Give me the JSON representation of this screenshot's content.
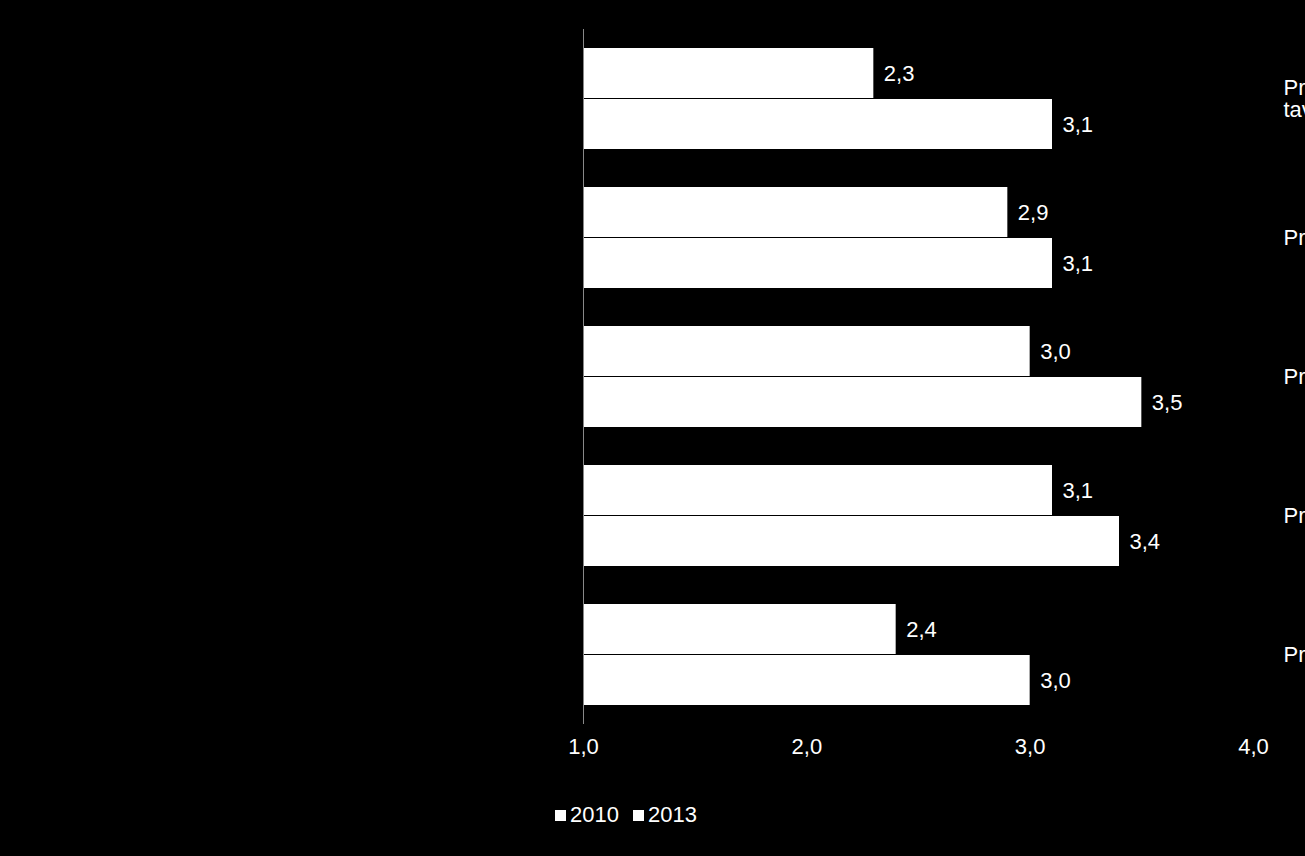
{
  "chart_data": {
    "type": "bar",
    "orientation": "horizontal",
    "categories": [
      "Projektin taloudellisten resurssien kohdentaminen tavoitteiden/toiminnan kannalta oleellisiin asioihin",
      "Projektihenkilöstön riittävyys",
      "Projektihenkilöstön ammattitaito",
      "Projektihenkilöstön keskinäinen yhteistyö",
      "Projektihenkilöstön työssäjaksamisen huomioiminen"
    ],
    "series": [
      {
        "name": "2010",
        "color": "#ffffff",
        "values": [
          2.3,
          2.9,
          3.0,
          3.1,
          2.4
        ],
        "value_labels": [
          "2,3",
          "2,9",
          "3,0",
          "3,1",
          "2,4"
        ]
      },
      {
        "name": "2013",
        "color": "#ffffff",
        "values": [
          3.1,
          3.1,
          3.5,
          3.4,
          3.0
        ],
        "value_labels": [
          "3,1",
          "3,1",
          "3,5",
          "3,4",
          "3,0"
        ]
      }
    ],
    "xlim": [
      1,
      4
    ],
    "xticks": [
      {
        "value": 1,
        "label": "1,0"
      },
      {
        "value": 2,
        "label": "2,0"
      },
      {
        "value": 3,
        "label": "3,0"
      },
      {
        "value": 4,
        "label": "4,0"
      }
    ],
    "data_labels": true,
    "grid": false,
    "legend": "bottom"
  }
}
